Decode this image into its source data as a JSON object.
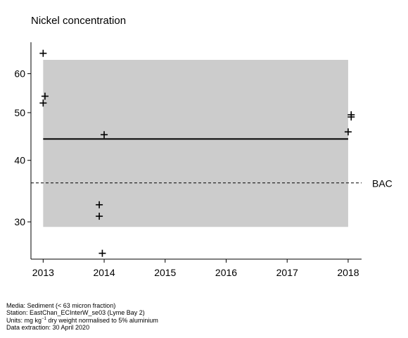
{
  "chart_data": {
    "type": "scatter",
    "title": "Nickel concentration",
    "xlabel": "",
    "ylabel": "",
    "x_ticks": [
      2013,
      2014,
      2015,
      2016,
      2017,
      2018
    ],
    "y_ticks": [
      30,
      40,
      50,
      60
    ],
    "y_scale": "log",
    "xlim": [
      2012.8,
      2018.22
    ],
    "ylim": [
      25.2,
      69.5
    ],
    "grid": false,
    "points": [
      {
        "x": 2013.0,
        "y": 66.0
      },
      {
        "x": 2013.03,
        "y": 54.0
      },
      {
        "x": 2013.0,
        "y": 52.3
      },
      {
        "x": 2014.0,
        "y": 45.1
      },
      {
        "x": 2013.92,
        "y": 32.5
      },
      {
        "x": 2013.92,
        "y": 30.8
      },
      {
        "x": 2013.97,
        "y": 25.9
      },
      {
        "x": 2018.05,
        "y": 49.5
      },
      {
        "x": 2018.05,
        "y": 49.0
      },
      {
        "x": 2018.0,
        "y": 45.7
      }
    ],
    "band": {
      "x0": 2013.0,
      "x1": 2018.0,
      "y0": 29.3,
      "y1": 64.0,
      "color": "#cccccc"
    },
    "trend": {
      "x0": 2013.0,
      "x1": 2018.0,
      "y": 44.2
    },
    "reference_lines": [
      {
        "label": "BAC",
        "y": 36.0,
        "style": "dashed"
      }
    ]
  },
  "footer": {
    "media": "Media: Sediment (< 63 micron fraction)",
    "station": "Station: EastChan_ECInterW_se03 (Lyme Bay 2)",
    "units_prefix": "Units:  mg kg",
    "units_sup": "−1",
    "units_suffix": " dry weight normalised to 5% aluminium",
    "extraction": "Data extraction: 30 April 2020"
  }
}
